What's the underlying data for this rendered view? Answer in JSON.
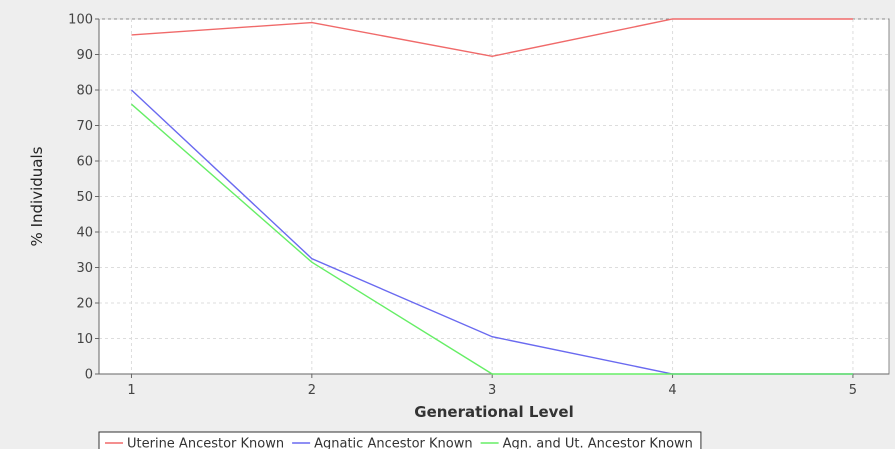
{
  "chart_data": {
    "type": "line",
    "title": "",
    "xlabel": "Generational Level",
    "ylabel": "% Individuals",
    "x": [
      1,
      2,
      3,
      4,
      5
    ],
    "xlim": [
      0.82,
      5.2
    ],
    "ylim": [
      0,
      100
    ],
    "yticks": [
      0,
      10,
      20,
      30,
      40,
      50,
      60,
      70,
      80,
      90,
      100
    ],
    "xticks": [
      1,
      2,
      3,
      4,
      5
    ],
    "grid": true,
    "legend_placement": "bottom",
    "series": [
      {
        "name": "Uterine Ancestor Known",
        "color": "#f06a6a",
        "values": [
          95.5,
          99,
          89.5,
          100,
          100
        ]
      },
      {
        "name": "Agnatic Ancestor Known",
        "color": "#6a6af0",
        "values": [
          80,
          32.5,
          10.5,
          0,
          0
        ]
      },
      {
        "name": "Agn. and Ut. Ancestor Known",
        "color": "#66ee66",
        "values": [
          76,
          31.5,
          0,
          0,
          0
        ]
      }
    ]
  }
}
